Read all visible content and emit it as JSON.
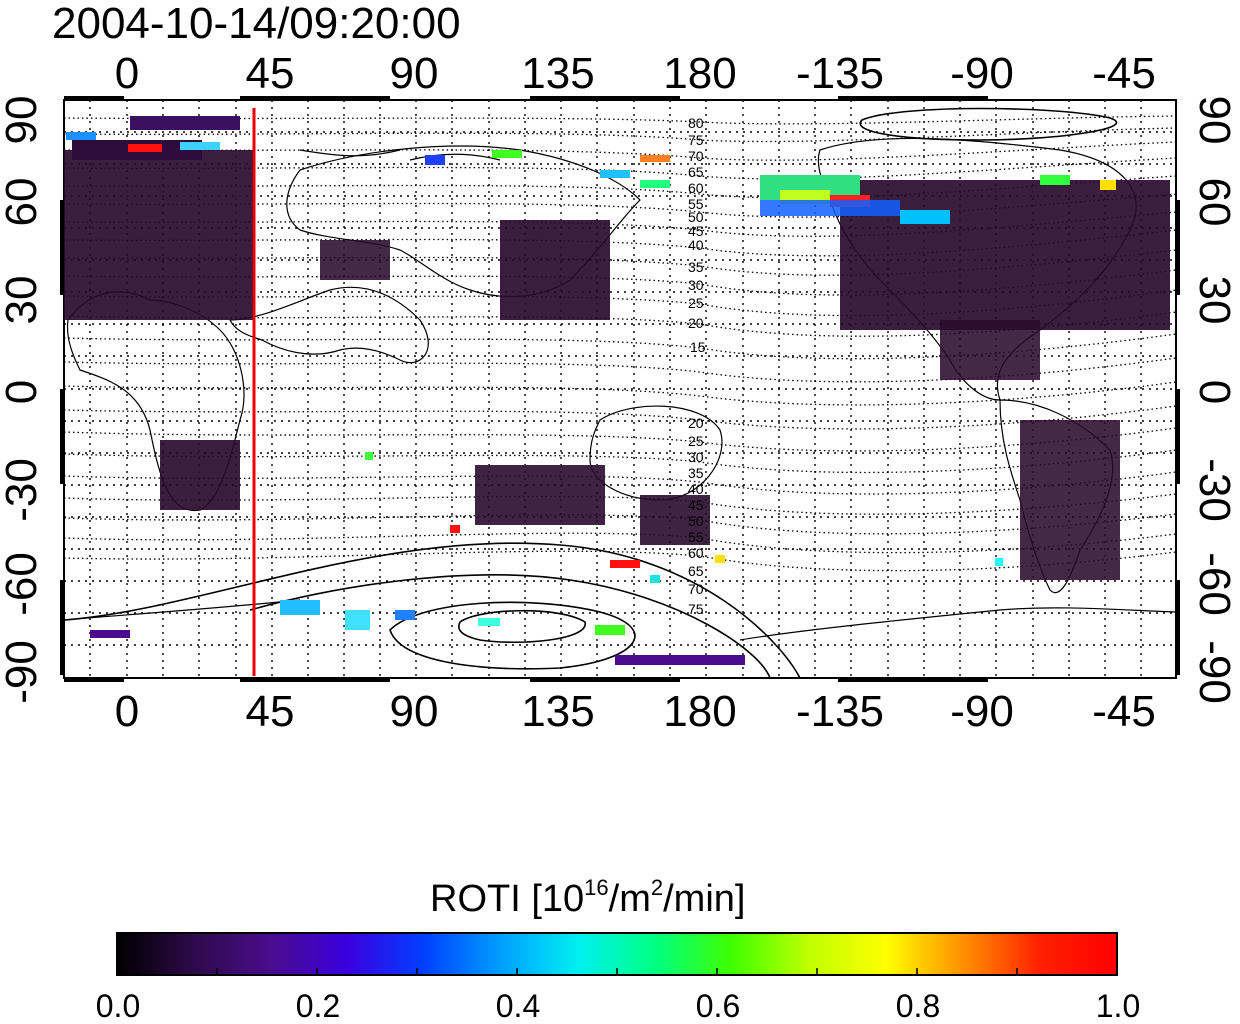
{
  "title": "2004-10-14/09:20:00",
  "map": {
    "top_axis_labels": [
      "0",
      "45",
      "90",
      "135",
      "180",
      "-135",
      "-90",
      "-45"
    ],
    "bottom_axis_labels": [
      "0",
      "45",
      "90",
      "135",
      "180",
      "-135",
      "-90",
      "-45"
    ],
    "left_axis_labels": [
      "90",
      "60",
      "30",
      "0",
      "-30",
      "-60",
      "-90"
    ],
    "right_axis_labels": [
      "90",
      "60",
      "30",
      "0",
      "-30",
      "-60",
      "-90"
    ],
    "meridian_marker_longitude": 39,
    "contour_labels_north": [
      "80",
      "75",
      "70",
      "65",
      "60",
      "55",
      "50",
      "45",
      "40",
      "35",
      "30",
      "25",
      "20",
      "15"
    ],
    "contour_labels_south": [
      "20",
      "25",
      "30",
      "35",
      "40",
      "45",
      "50",
      "55",
      "60",
      "65",
      "70",
      "75"
    ],
    "colors": {
      "marker": "#e80000",
      "frame": "#000000"
    }
  },
  "colorbar": {
    "label_main": "ROTI  [10",
    "label_sup1": "16",
    "label_mid": "/m",
    "label_sup2": "2",
    "label_end": "/min]",
    "ticks": [
      "0.0",
      "0.2",
      "0.4",
      "0.6",
      "0.8",
      "1.0"
    ],
    "min": 0.0,
    "max": 1.0,
    "stops": [
      "#000000",
      "#2e0a4a",
      "#4a0c8c",
      "#3a00e0",
      "#0040ff",
      "#00a0ff",
      "#00f0f0",
      "#00ff80",
      "#40ff00",
      "#c0ff00",
      "#ffff00",
      "#ff9000",
      "#ff2000",
      "#ff0000"
    ]
  }
}
